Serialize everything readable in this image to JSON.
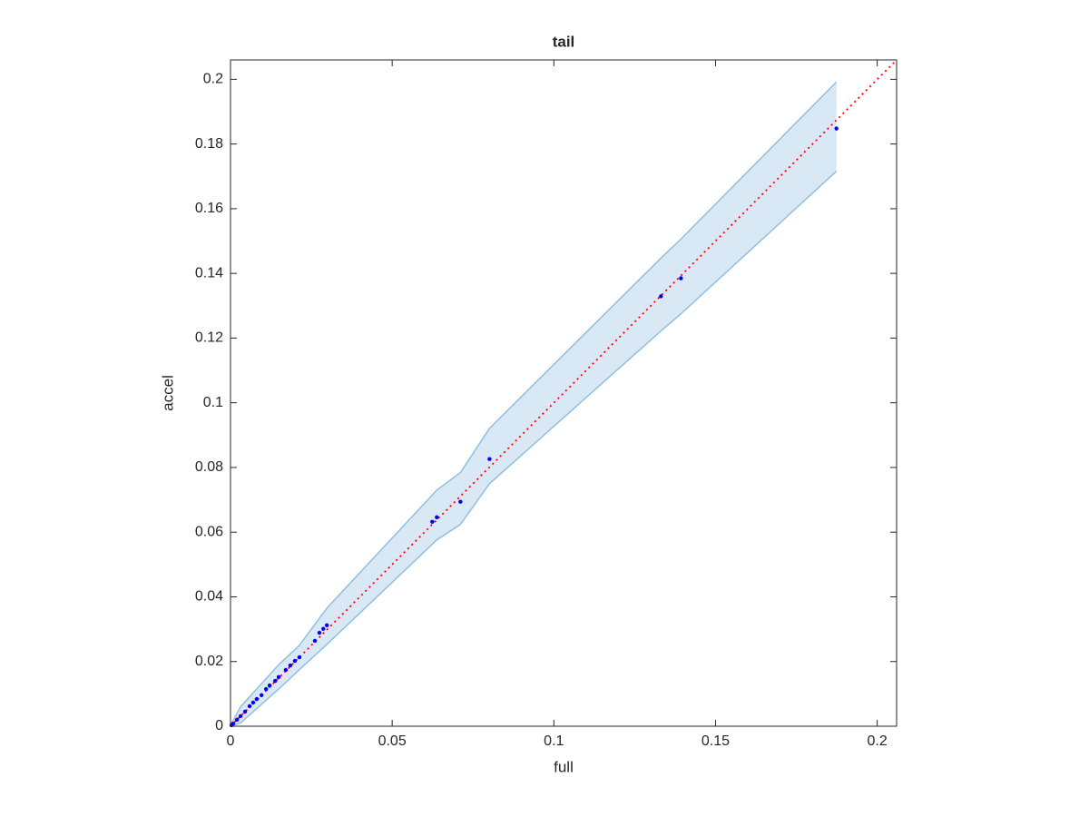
{
  "chart_data": {
    "type": "scatter",
    "title": "tail",
    "x_label": "full",
    "y_label": "accel",
    "xlim": [
      0,
      0.206
    ],
    "ylim": [
      0,
      0.206
    ],
    "xticks": [
      0,
      0.05,
      0.1,
      0.15,
      0.2
    ],
    "yticks": [
      0,
      0.02,
      0.04,
      0.06,
      0.08,
      0.1,
      0.12,
      0.14,
      0.16,
      0.18,
      0.2
    ],
    "x": [
      0.1874,
      0.1393,
      0.1331,
      0.0801,
      0.0711,
      0.0638,
      0.0624,
      0.0298,
      0.0287,
      0.0275,
      0.0261,
      0.0213,
      0.0199,
      0.0185,
      0.0171,
      0.0149,
      0.0138,
      0.0121,
      0.011,
      0.0096,
      0.0081,
      0.007,
      0.0059,
      0.0045,
      0.0031,
      0.002,
      0.0008,
      0.0003
    ],
    "y": [
      0.1848,
      0.1385,
      0.1329,
      0.0826,
      0.0694,
      0.0646,
      0.0632,
      0.0312,
      0.0301,
      0.0289,
      0.0264,
      0.0213,
      0.0202,
      0.0188,
      0.0174,
      0.0152,
      0.014,
      0.0126,
      0.0115,
      0.0096,
      0.0084,
      0.0073,
      0.0062,
      0.0045,
      0.0031,
      0.002,
      0.0008,
      0.0003
    ],
    "color": "#0000ff",
    "band": {
      "x": [
        0,
        0.0031,
        0.0149,
        0.0213,
        0.0298,
        0.0638,
        0.0711,
        0.0801,
        0.1331,
        0.1393,
        0.1874
      ],
      "upper": [
        0.0003,
        0.006,
        0.019,
        0.025,
        0.0365,
        0.073,
        0.0784,
        0.0921,
        0.1447,
        0.1506,
        0.1992
      ],
      "lower": [
        0,
        0.001,
        0.0115,
        0.0175,
        0.0253,
        0.0576,
        0.0624,
        0.075,
        0.1222,
        0.1275,
        0.1716
      ],
      "color": "#8fbfe0",
      "fill": "#d9e8f5"
    },
    "reference_line": {
      "x": [
        0,
        0.206
      ],
      "y": [
        0,
        0.206
      ],
      "color": "#ff0000"
    }
  }
}
